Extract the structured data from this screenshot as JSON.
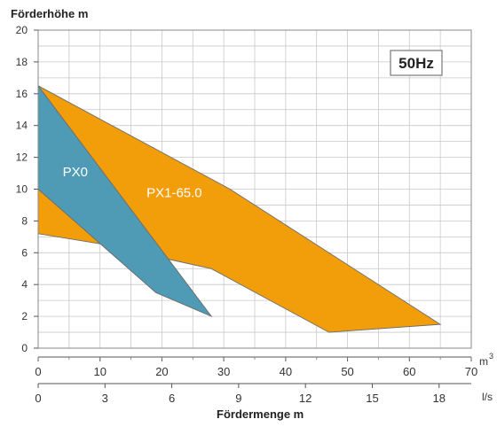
{
  "chart_data": {
    "type": "area",
    "ylabel": "Förderhöhe m",
    "xlabel": "Fördermenge m",
    "x_unit_top": "m",
    "x_unit_top_sup": "3",
    "x_unit_bottom": "l/s",
    "frequency_badge": "50Hz",
    "xlim": [
      0,
      70
    ],
    "ylim": [
      0,
      20
    ],
    "x_ticks": [
      "0",
      "10",
      "20",
      "30",
      "40",
      "50",
      "60",
      "70"
    ],
    "x_ticks_values": [
      0,
      10,
      20,
      30,
      40,
      50,
      60,
      70
    ],
    "x2_ticks": [
      "0",
      "3",
      "6",
      "9",
      "12",
      "15",
      "18"
    ],
    "x2_ticks_positions_m3h": [
      0,
      10.8,
      21.6,
      32.4,
      43.2,
      54,
      64.8
    ],
    "y_ticks": [
      "0",
      "2",
      "4",
      "6",
      "8",
      "10",
      "12",
      "14",
      "16",
      "18",
      "20"
    ],
    "y_ticks_values": [
      0,
      2,
      4,
      6,
      8,
      10,
      12,
      14,
      16,
      18,
      20
    ],
    "grid": true,
    "series": [
      {
        "name": "PX1-65.0",
        "color": "#f29d0a",
        "label_at": [
          22,
          9.5
        ],
        "polygon": [
          [
            0,
            16.5
          ],
          [
            31,
            10
          ],
          [
            65,
            1.5
          ],
          [
            47,
            1
          ],
          [
            28,
            5
          ],
          [
            21,
            5.6
          ],
          [
            11,
            6.5
          ],
          [
            0,
            7.2
          ],
          [
            0,
            10
          ]
        ]
      },
      {
        "name": "PX0",
        "color": "#4f9bb5",
        "label_at": [
          6,
          10.8
        ],
        "polygon": [
          [
            0,
            16.5
          ],
          [
            28,
            2
          ],
          [
            19,
            3.5
          ],
          [
            0,
            10
          ]
        ]
      }
    ]
  }
}
